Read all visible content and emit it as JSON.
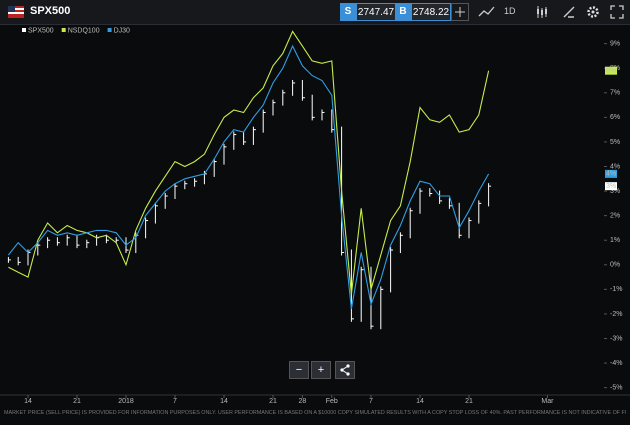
{
  "toolbar": {
    "symbol": "SPX500",
    "sell_label": "S",
    "sell_price": "2747.47",
    "buy_label": "B",
    "buy_price": "2748.22",
    "timeframe": "1D"
  },
  "controls": {
    "zoom_out": "−",
    "zoom_in": "+"
  },
  "footer": "MARKET PRICE (SELL PRICE) IS PROVIDED FOR INFORMATION PURPOSES ONLY. USER PERFORMANCE IS BASED ON A $10000 COPY SIMULATED RESULTS WITH A COPY STOP LOSS OF 40%. PAST PERFORMANCE IS NOT INDICATIVE OF FUTURE RESULTS.",
  "chart_data": {
    "type": "line",
    "categories": [
      null,
      null,
      "14",
      null,
      null,
      null,
      null,
      "21",
      null,
      null,
      null,
      null,
      "2018",
      null,
      null,
      null,
      null,
      "7",
      null,
      null,
      null,
      null,
      "14",
      null,
      null,
      null,
      null,
      "21",
      null,
      null,
      "28",
      null,
      null,
      "Feb",
      null,
      null,
      null,
      "7",
      null,
      null,
      null,
      null,
      "14",
      null,
      null,
      null,
      null,
      "21",
      null,
      null,
      null,
      null,
      null,
      null,
      null,
      "Mar"
    ],
    "series": [
      {
        "name": "SPX500",
        "color": "#ffffff",
        "style": "bars",
        "values": [
          0.2,
          0.1,
          0.5,
          0.8,
          1.0,
          0.9,
          1.1,
          0.8,
          0.9,
          1.1,
          1.0,
          1.0,
          0.6,
          1.2,
          1.8,
          2.4,
          2.8,
          3.2,
          3.3,
          3.4,
          3.7,
          4.2,
          4.8,
          5.3,
          5.0,
          5.5,
          6.2,
          6.6,
          7.0,
          7.4,
          6.8,
          6.0,
          6.2,
          5.5,
          0.5,
          -2.2,
          -0.2,
          -2.5,
          -1.0,
          0.6,
          1.2,
          2.2,
          3.0,
          2.9,
          2.6,
          2.4,
          1.2,
          1.8,
          2.5,
          3.2,
          null,
          null,
          null,
          null,
          null,
          null
        ],
        "value_labels": [
          null,
          null,
          null,
          null,
          null,
          null,
          null,
          null,
          null,
          null,
          null,
          null,
          null,
          null,
          null,
          null,
          null,
          null,
          null,
          null,
          null,
          null,
          null,
          null,
          null,
          null,
          null,
          null,
          null,
          null,
          null,
          null,
          null,
          null,
          null,
          null,
          null,
          null,
          null,
          null,
          null,
          null,
          null,
          null,
          null,
          null,
          null,
          null,
          null,
          "3%",
          null,
          null,
          null,
          null,
          null,
          null
        ]
      },
      {
        "name": "NSDQ100",
        "color": "#c6ec4c",
        "style": "line",
        "values": [
          -0.1,
          -0.3,
          -0.5,
          1.0,
          1.7,
          1.3,
          1.6,
          1.4,
          1.3,
          1.1,
          1.2,
          0.9,
          0.0,
          1.4,
          2.3,
          3.0,
          3.6,
          4.2,
          4.0,
          4.2,
          4.5,
          5.3,
          6.0,
          6.3,
          6.2,
          6.8,
          7.2,
          8.1,
          8.6,
          9.5,
          8.9,
          8.3,
          8.2,
          8.3,
          3.0,
          -1.2,
          2.3,
          -1.0,
          0.4,
          1.8,
          2.4,
          4.2,
          6.4,
          5.9,
          5.8,
          6.1,
          5.4,
          5.5,
          6.1,
          7.9,
          null,
          null,
          null,
          null,
          null,
          null
        ],
        "value_labels": [
          null,
          null,
          null,
          null,
          null,
          null,
          null,
          null,
          null,
          null,
          null,
          null,
          null,
          null,
          null,
          null,
          null,
          null,
          null,
          null,
          null,
          null,
          null,
          null,
          null,
          null,
          null,
          null,
          null,
          null,
          null,
          null,
          null,
          null,
          null,
          null,
          null,
          null,
          null,
          null,
          null,
          null,
          null,
          null,
          null,
          null,
          null,
          null,
          null,
          "8%",
          null,
          null,
          null,
          null,
          null,
          null
        ]
      },
      {
        "name": "DJ30",
        "color": "#2f9fe2",
        "style": "line",
        "values": [
          0.4,
          0.9,
          0.5,
          0.9,
          1.4,
          1.2,
          1.3,
          1.2,
          1.3,
          1.4,
          1.4,
          1.3,
          0.8,
          1.1,
          2.0,
          2.5,
          3.0,
          3.3,
          3.5,
          3.6,
          3.7,
          4.3,
          5.0,
          5.5,
          5.4,
          6.0,
          6.5,
          7.4,
          8.0,
          8.9,
          8.1,
          7.7,
          7.5,
          6.9,
          2.0,
          -1.8,
          0.5,
          -1.6,
          -0.6,
          0.8,
          1.6,
          2.6,
          3.4,
          3.3,
          2.8,
          2.8,
          1.5,
          2.2,
          3.0,
          3.7,
          null,
          null,
          null,
          null,
          null,
          null
        ],
        "value_labels": [
          null,
          null,
          null,
          null,
          null,
          null,
          null,
          null,
          null,
          null,
          null,
          null,
          null,
          null,
          null,
          null,
          null,
          null,
          null,
          null,
          null,
          null,
          null,
          null,
          null,
          null,
          null,
          null,
          null,
          null,
          null,
          null,
          null,
          null,
          null,
          null,
          null,
          null,
          null,
          null,
          null,
          null,
          null,
          null,
          null,
          null,
          null,
          null,
          null,
          "4%",
          null,
          null,
          null,
          null,
          null,
          null
        ]
      }
    ],
    "ylim": [
      -5.3,
      9.8
    ],
    "yticks": [
      {
        "value": 9,
        "label": "9%"
      },
      {
        "value": 8,
        "label": "8%"
      },
      {
        "value": 7,
        "label": "7%"
      },
      {
        "value": 6,
        "label": "6%"
      },
      {
        "value": 5,
        "label": "5%"
      },
      {
        "value": 4,
        "label": "4%"
      },
      {
        "value": 3,
        "label": "3%"
      },
      {
        "value": 2,
        "label": "2%"
      },
      {
        "value": 1,
        "label": "1%"
      },
      {
        "value": 0,
        "label": "0%"
      },
      {
        "value": -1,
        "label": "-1%"
      },
      {
        "value": -2,
        "label": "-2%"
      },
      {
        "value": -3,
        "label": "-3%"
      },
      {
        "value": -4,
        "label": "-4%"
      },
      {
        "value": -5,
        "label": "-5%"
      }
    ],
    "grid": false
  }
}
